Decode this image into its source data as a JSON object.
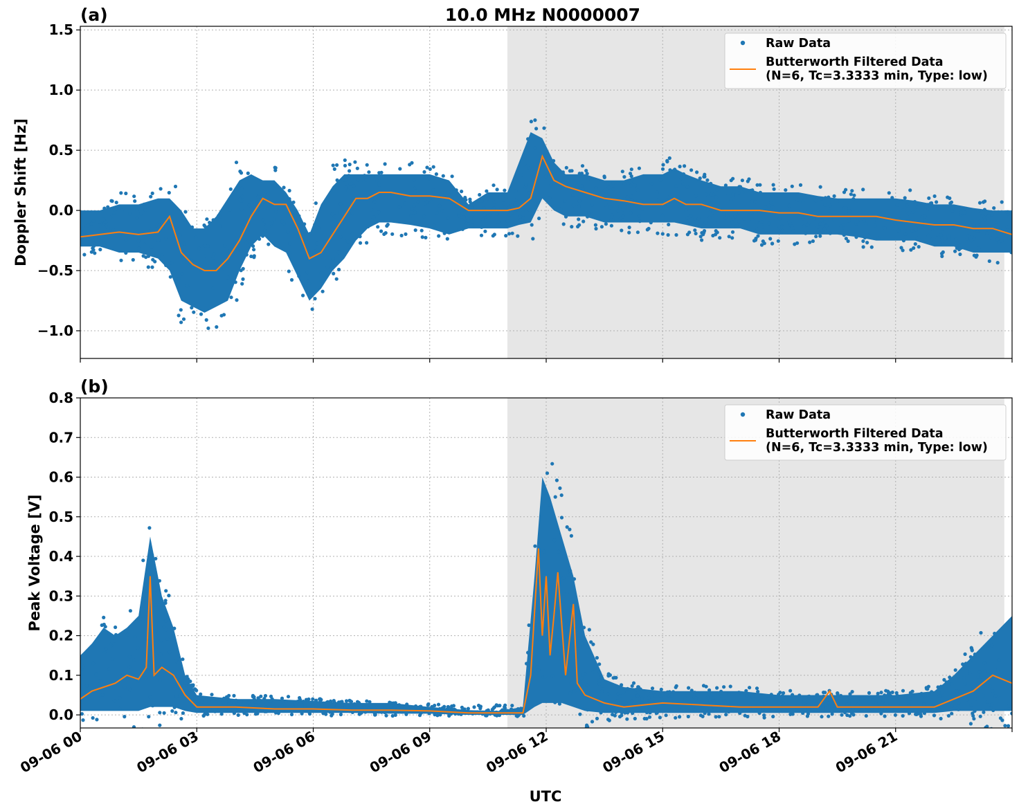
{
  "figure": {
    "title": "10.0 MHz N0000007",
    "xlabel": "UTC",
    "x_tick_labels": [
      "09-06 00",
      "09-06 03",
      "09-06 06",
      "09-06 09",
      "09-06 12",
      "09-06 15",
      "09-06 18",
      "09-06 21"
    ],
    "colors": {
      "raw": "#1f77b4",
      "filtered": "#ff7f0e",
      "shade": "#e6e6e6",
      "grid": "#b0b0b0"
    },
    "shaded_span_hours": [
      11.0,
      23.8
    ]
  },
  "chart_data": [
    {
      "type": "scatter",
      "panel_label": "(a)",
      "ylabel": "Doppler Shift [Hz]",
      "xlim_hours": [
        0,
        24
      ],
      "ylim": [
        -1.23,
        1.53
      ],
      "y_ticks": [
        -1.0,
        -0.5,
        0.0,
        0.5,
        1.0,
        1.5
      ],
      "y_tick_labels": [
        "−1.0",
        "−0.5",
        "0.0",
        "0.5",
        "1.0",
        "1.5"
      ],
      "legend": {
        "location": "upper right",
        "raw_label": "Raw Data",
        "filtered_label_line1": "Butterworth Filtered Data",
        "filtered_label_line2": "(N=6, Tc=3.3333 min, Type: low)"
      },
      "series": [
        {
          "name": "Raw Data",
          "kind": "band",
          "x": [
            0.0,
            0.5,
            1.0,
            1.5,
            2.0,
            2.3,
            2.6,
            2.9,
            3.2,
            3.5,
            3.8,
            4.1,
            4.4,
            4.7,
            5.0,
            5.3,
            5.6,
            5.9,
            6.2,
            6.5,
            6.8,
            7.1,
            7.4,
            7.7,
            8.0,
            8.5,
            9.0,
            9.5,
            10.0,
            10.5,
            11.0,
            11.3,
            11.6,
            11.9,
            12.2,
            12.5,
            13.0,
            13.5,
            14.0,
            14.5,
            15.0,
            15.3,
            15.6,
            16.0,
            16.5,
            17.0,
            17.5,
            18.0,
            18.5,
            19.0,
            19.5,
            20.0,
            20.5,
            21.0,
            21.5,
            22.0,
            22.5,
            23.0,
            23.5,
            24.0
          ],
          "low": [
            -0.3,
            -0.3,
            -0.35,
            -0.35,
            -0.4,
            -0.5,
            -0.75,
            -0.8,
            -0.85,
            -0.8,
            -0.75,
            -0.5,
            -0.3,
            -0.2,
            -0.3,
            -0.35,
            -0.55,
            -0.75,
            -0.65,
            -0.5,
            -0.4,
            -0.25,
            -0.15,
            -0.1,
            -0.1,
            -0.12,
            -0.15,
            -0.2,
            -0.15,
            -0.15,
            -0.15,
            -0.12,
            -0.1,
            0.1,
            0.0,
            -0.05,
            -0.05,
            -0.1,
            -0.1,
            -0.1,
            -0.1,
            -0.1,
            -0.12,
            -0.15,
            -0.15,
            -0.15,
            -0.2,
            -0.2,
            -0.2,
            -0.2,
            -0.2,
            -0.22,
            -0.25,
            -0.25,
            -0.25,
            -0.3,
            -0.3,
            -0.35,
            -0.35,
            -0.35
          ],
          "high": [
            0.0,
            0.0,
            0.05,
            0.05,
            0.1,
            0.1,
            0.0,
            -0.15,
            -0.15,
            -0.05,
            0.1,
            0.25,
            0.3,
            0.25,
            0.25,
            0.15,
            0.0,
            -0.2,
            0.05,
            0.2,
            0.3,
            0.3,
            0.3,
            0.3,
            0.3,
            0.3,
            0.3,
            0.25,
            0.05,
            0.15,
            0.15,
            0.4,
            0.65,
            0.6,
            0.4,
            0.3,
            0.3,
            0.25,
            0.25,
            0.3,
            0.3,
            0.35,
            0.3,
            0.25,
            0.2,
            0.2,
            0.15,
            0.15,
            0.15,
            0.12,
            0.1,
            0.1,
            0.1,
            0.1,
            0.08,
            0.05,
            0.05,
            0.02,
            0.0,
            0.0
          ]
        },
        {
          "name": "Butterworth Filtered Data",
          "kind": "line",
          "x": [
            0.0,
            0.5,
            1.0,
            1.5,
            2.0,
            2.3,
            2.6,
            2.9,
            3.2,
            3.5,
            3.8,
            4.1,
            4.4,
            4.7,
            5.0,
            5.3,
            5.6,
            5.9,
            6.2,
            6.5,
            6.8,
            7.1,
            7.4,
            7.7,
            8.0,
            8.5,
            9.0,
            9.5,
            10.0,
            10.5,
            11.0,
            11.3,
            11.6,
            11.9,
            12.2,
            12.5,
            13.0,
            13.5,
            14.0,
            14.5,
            15.0,
            15.3,
            15.6,
            16.0,
            16.5,
            17.0,
            17.5,
            18.0,
            18.5,
            19.0,
            19.5,
            20.0,
            20.5,
            21.0,
            21.5,
            22.0,
            22.5,
            23.0,
            23.5,
            24.0
          ],
          "y": [
            -0.22,
            -0.2,
            -0.18,
            -0.2,
            -0.18,
            -0.05,
            -0.35,
            -0.45,
            -0.5,
            -0.5,
            -0.4,
            -0.25,
            -0.05,
            0.1,
            0.05,
            0.05,
            -0.15,
            -0.4,
            -0.35,
            -0.2,
            -0.05,
            0.1,
            0.1,
            0.15,
            0.15,
            0.12,
            0.12,
            0.1,
            0.0,
            0.0,
            0.0,
            0.02,
            0.1,
            0.45,
            0.25,
            0.2,
            0.15,
            0.1,
            0.08,
            0.05,
            0.05,
            0.1,
            0.05,
            0.05,
            0.0,
            0.0,
            0.0,
            -0.02,
            -0.02,
            -0.05,
            -0.05,
            -0.05,
            -0.05,
            -0.08,
            -0.1,
            -0.12,
            -0.12,
            -0.15,
            -0.15,
            -0.2
          ]
        }
      ]
    },
    {
      "type": "scatter",
      "panel_label": "(b)",
      "ylabel": "Peak Voltage [V]",
      "xlim_hours": [
        0,
        24
      ],
      "ylim": [
        -0.033,
        0.8
      ],
      "y_ticks": [
        0.0,
        0.1,
        0.2,
        0.3,
        0.4,
        0.5,
        0.6,
        0.7,
        0.8
      ],
      "y_tick_labels": [
        "0.0",
        "0.1",
        "0.2",
        "0.3",
        "0.4",
        "0.5",
        "0.6",
        "0.7",
        "0.8"
      ],
      "legend": {
        "location": "upper right",
        "raw_label": "Raw Data",
        "filtered_label_line1": "Butterworth Filtered Data",
        "filtered_label_line2": "(N=6, Tc=3.3333 min, Type: low)"
      },
      "series": [
        {
          "name": "Raw Data",
          "kind": "band",
          "x": [
            0.0,
            0.3,
            0.6,
            0.9,
            1.2,
            1.5,
            1.8,
            2.1,
            2.4,
            2.7,
            3.0,
            4.0,
            5.0,
            6.0,
            7.0,
            8.0,
            9.0,
            10.0,
            10.8,
            11.4,
            11.7,
            11.9,
            12.1,
            12.4,
            12.7,
            13.0,
            13.5,
            14.0,
            15.0,
            16.0,
            17.0,
            18.0,
            19.0,
            20.0,
            21.0,
            22.0,
            22.5,
            23.0,
            23.5,
            24.0
          ],
          "low": [
            0.01,
            0.01,
            0.01,
            0.01,
            0.01,
            0.01,
            0.02,
            0.02,
            0.02,
            0.01,
            0.005,
            0.005,
            0.005,
            0.005,
            0.005,
            0.003,
            0.003,
            0.0,
            0.0,
            0.0,
            0.02,
            0.03,
            0.03,
            0.03,
            0.02,
            0.01,
            0.005,
            0.005,
            0.005,
            0.005,
            0.005,
            0.005,
            0.005,
            0.005,
            0.005,
            0.005,
            0.01,
            0.01,
            0.01,
            0.01
          ],
          "high": [
            0.15,
            0.18,
            0.22,
            0.2,
            0.22,
            0.25,
            0.45,
            0.3,
            0.22,
            0.1,
            0.05,
            0.04,
            0.04,
            0.035,
            0.03,
            0.03,
            0.02,
            0.012,
            0.01,
            0.02,
            0.35,
            0.6,
            0.55,
            0.45,
            0.35,
            0.2,
            0.09,
            0.07,
            0.06,
            0.06,
            0.06,
            0.05,
            0.05,
            0.05,
            0.05,
            0.06,
            0.1,
            0.15,
            0.2,
            0.25
          ]
        },
        {
          "name": "Butterworth Filtered Data",
          "kind": "line",
          "x": [
            0.0,
            0.3,
            0.6,
            0.9,
            1.2,
            1.5,
            1.7,
            1.8,
            1.9,
            2.1,
            2.4,
            2.7,
            3.0,
            4.0,
            5.0,
            6.0,
            7.0,
            8.0,
            9.0,
            10.0,
            10.8,
            11.4,
            11.6,
            11.8,
            11.9,
            12.0,
            12.1,
            12.2,
            12.3,
            12.5,
            12.7,
            12.8,
            13.0,
            13.5,
            14.0,
            15.0,
            16.0,
            17.0,
            18.0,
            19.0,
            19.3,
            19.5,
            20.0,
            21.0,
            22.0,
            22.5,
            23.0,
            23.5,
            24.0
          ],
          "y": [
            0.04,
            0.06,
            0.07,
            0.08,
            0.1,
            0.09,
            0.12,
            0.35,
            0.1,
            0.12,
            0.1,
            0.05,
            0.02,
            0.02,
            0.015,
            0.015,
            0.012,
            0.012,
            0.01,
            0.005,
            0.005,
            0.005,
            0.1,
            0.42,
            0.2,
            0.35,
            0.15,
            0.25,
            0.36,
            0.1,
            0.28,
            0.08,
            0.05,
            0.03,
            0.02,
            0.03,
            0.025,
            0.02,
            0.02,
            0.02,
            0.06,
            0.02,
            0.02,
            0.02,
            0.02,
            0.04,
            0.06,
            0.1,
            0.08
          ]
        }
      ]
    }
  ]
}
